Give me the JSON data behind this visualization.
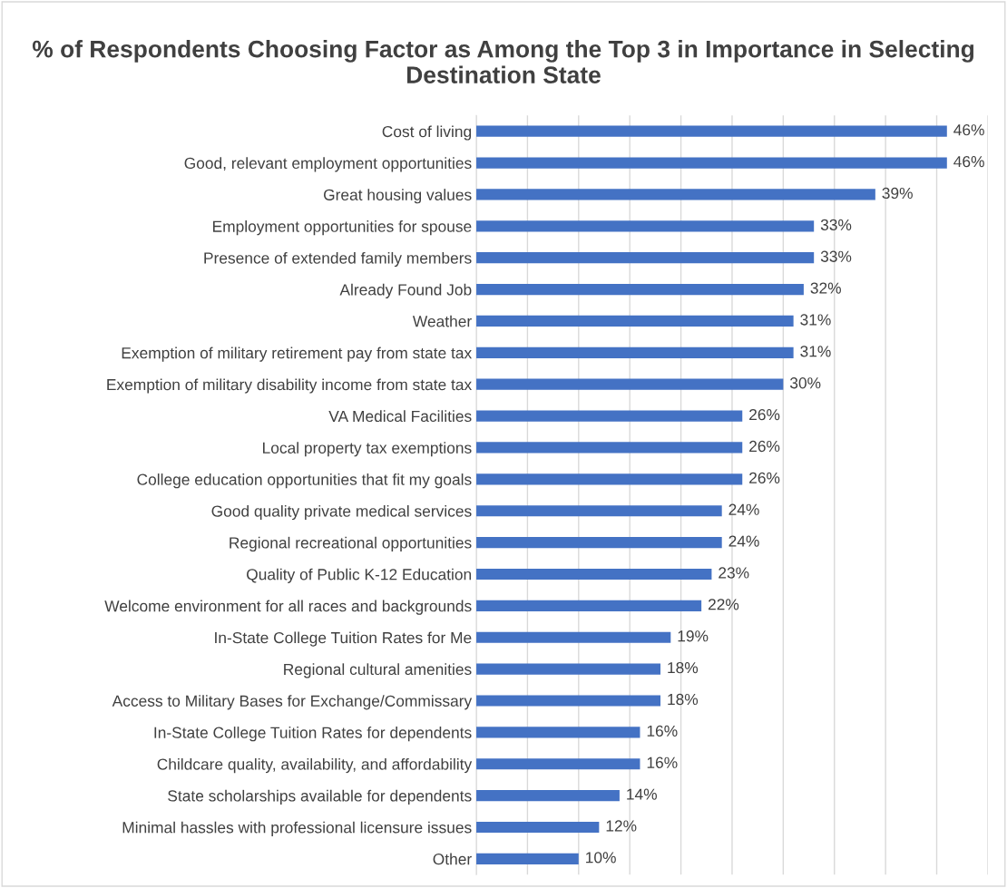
{
  "chart_data": {
    "type": "bar",
    "orientation": "horizontal",
    "title": "% of Respondents Choosing Factor as Among the Top 3 in Importance in Selecting Destination State",
    "categories": [
      "Cost of living",
      "Good, relevant employment opportunities",
      "Great housing values",
      "Employment opportunities for spouse",
      "Presence of extended family members",
      "Already Found Job",
      "Weather",
      "Exemption of military retirement pay from state tax",
      "Exemption of military disability income from state tax",
      "VA Medical Facilities",
      "Local property tax exemptions",
      "College education opportunities that fit my goals",
      "Good quality private medical services",
      "Regional recreational opportunities",
      "Quality of Public K-12 Education",
      "Welcome environment for all races and backgrounds",
      "In-State College Tuition Rates for Me",
      "Regional cultural amenities",
      "Access to Military Bases for Exchange/Commissary",
      "In-State College Tuition Rates for dependents",
      "Childcare quality, availability, and affordability",
      "State scholarships available for dependents",
      "Minimal hassles with professional licensure issues",
      "Other"
    ],
    "values": [
      46,
      46,
      39,
      33,
      33,
      32,
      31,
      31,
      30,
      26,
      26,
      26,
      24,
      24,
      23,
      22,
      19,
      18,
      18,
      16,
      16,
      14,
      12,
      10
    ],
    "value_labels": [
      "46%",
      "46%",
      "39%",
      "33%",
      "33%",
      "32%",
      "31%",
      "31%",
      "30%",
      "26%",
      "26%",
      "26%",
      "24%",
      "24%",
      "23%",
      "22%",
      "19%",
      "18%",
      "18%",
      "16%",
      "16%",
      "14%",
      "12%",
      "10%"
    ],
    "color": "#4472c4",
    "xlim": [
      0,
      50
    ],
    "xticks": [
      {
        "value": 0,
        "label": null
      },
      {
        "value": 5,
        "label": null
      },
      {
        "value": 10,
        "label": null
      },
      {
        "value": 15,
        "label": null
      },
      {
        "value": 20,
        "label": null
      },
      {
        "value": 25,
        "label": null
      },
      {
        "value": 30,
        "label": null
      },
      {
        "value": 35,
        "label": null
      },
      {
        "value": 40,
        "label": null
      },
      {
        "value": 45,
        "label": null
      },
      {
        "value": 50,
        "label": null
      }
    ],
    "grid": "x",
    "tick_labels": "y"
  }
}
